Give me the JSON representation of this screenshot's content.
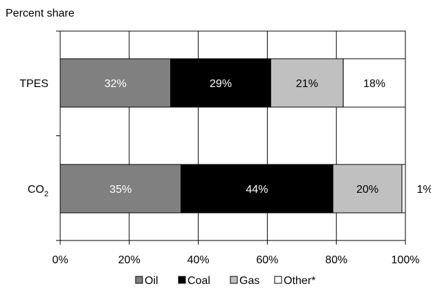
{
  "chart_data": {
    "type": "bar",
    "orientation": "horizontal",
    "stacked": true,
    "percent_stacked": true,
    "ylabel": "Percent share",
    "categories": [
      {
        "label": "TPES",
        "sub": ""
      },
      {
        "label": "CO",
        "sub": "2"
      }
    ],
    "series": [
      {
        "name": "Oil",
        "color": "#808080",
        "label_color": "#ffffff",
        "values": [
          32,
          35
        ],
        "labels": [
          "32%",
          "35%"
        ]
      },
      {
        "name": "Coal",
        "color": "#000000",
        "label_color": "#ffffff",
        "values": [
          29,
          44
        ],
        "labels": [
          "29%",
          "44%"
        ]
      },
      {
        "name": "Gas",
        "color": "#c0c0c0",
        "label_color": "#000000",
        "values": [
          21,
          20
        ],
        "labels": [
          "21%",
          "20%"
        ]
      },
      {
        "name": "Other*",
        "color": "#ffffff",
        "label_color": "#000000",
        "values": [
          18,
          1
        ],
        "labels": [
          "18%",
          "1%"
        ]
      }
    ],
    "xlim": [
      0,
      100
    ],
    "xticks": [
      "0%",
      "20%",
      "40%",
      "60%",
      "80%",
      "100%"
    ],
    "grid": true,
    "legend_position": "bottom"
  }
}
